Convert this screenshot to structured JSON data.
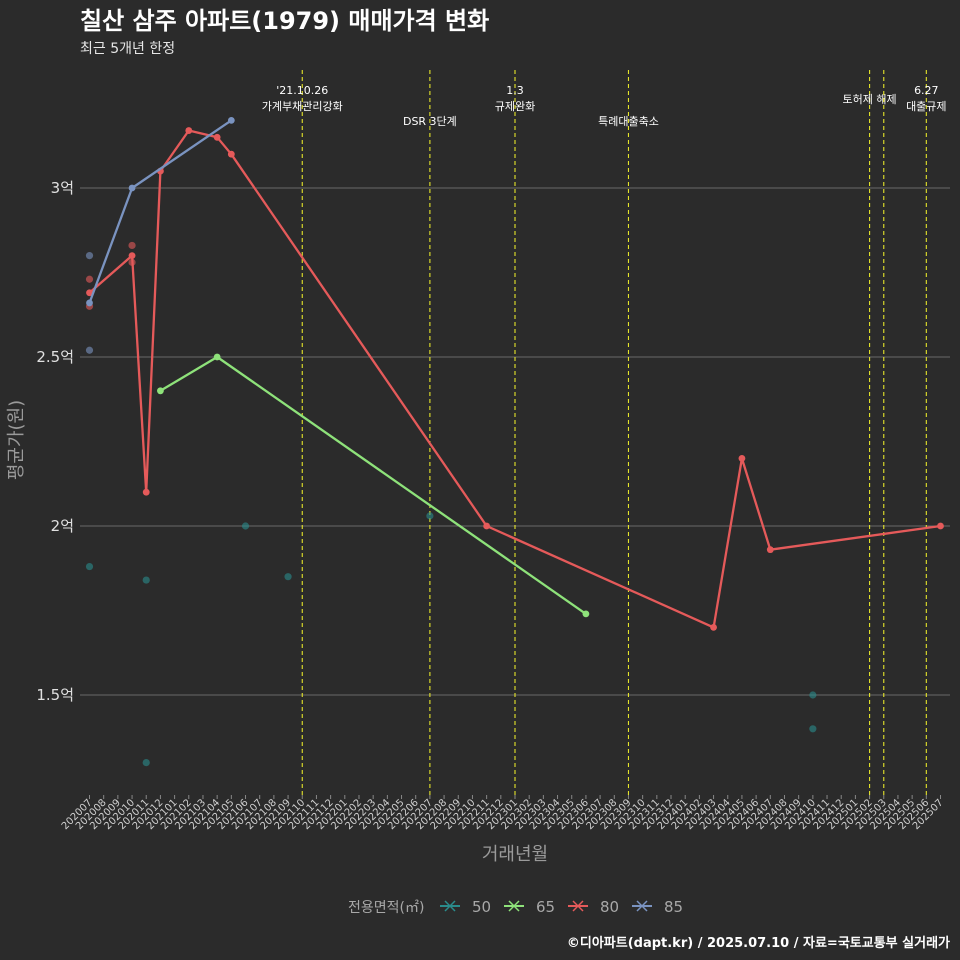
{
  "chart_data": {
    "type": "line",
    "title": "칠산 삼주 아파트(1979) 매매가격 변화",
    "subtitle": "최근 5개년 한정",
    "xlabel": "거래년월",
    "ylabel": "평균가(원)",
    "ylim": [
      1.2,
      3.4
    ],
    "y_ticks": [
      {
        "value": 1.5,
        "label": "1.5억"
      },
      {
        "value": 2.0,
        "label": "2억"
      },
      {
        "value": 2.5,
        "label": "2.5억"
      },
      {
        "value": 3.0,
        "label": "3억"
      }
    ],
    "x_categories": [
      "202007",
      "202008",
      "202009",
      "202010",
      "202011",
      "202012",
      "202101",
      "202102",
      "202103",
      "202104",
      "202105",
      "202106",
      "202107",
      "202108",
      "202109",
      "202110",
      "202111",
      "202112",
      "202201",
      "202202",
      "202203",
      "202204",
      "202205",
      "202206",
      "202207",
      "202208",
      "202209",
      "202210",
      "202211",
      "202212",
      "202301",
      "202302",
      "202303",
      "202304",
      "202305",
      "202306",
      "202307",
      "202308",
      "202309",
      "202310",
      "202311",
      "202312",
      "202401",
      "202402",
      "202403",
      "202404",
      "202405",
      "202406",
      "202407",
      "202408",
      "202409",
      "202410",
      "202411",
      "202412",
      "202501",
      "202502",
      "202503",
      "202504",
      "202505",
      "202506",
      "202507"
    ],
    "legend_title": "전용면적(㎡)",
    "series": [
      {
        "name": "50",
        "color": "#2a8c8c",
        "points": [],
        "scatter": [
          [
            "202007",
            1.88
          ],
          [
            "202011",
            1.84
          ],
          [
            "202011",
            1.3
          ],
          [
            "202106",
            2.0
          ],
          [
            "202109",
            1.85
          ],
          [
            "202207",
            2.03
          ],
          [
            "202410",
            1.5
          ],
          [
            "202410",
            1.4
          ]
        ]
      },
      {
        "name": "65",
        "color": "#8ee27a",
        "points": [
          [
            "202012",
            2.4
          ],
          [
            "202104",
            2.5
          ],
          [
            "202306",
            1.74
          ]
        ],
        "scatter": []
      },
      {
        "name": "80",
        "color": "#e55a5a",
        "points": [
          [
            "202007",
            2.69
          ],
          [
            "202010",
            2.8
          ],
          [
            "202011",
            2.1
          ],
          [
            "202012",
            3.05
          ],
          [
            "202102",
            3.17
          ],
          [
            "202104",
            3.15
          ],
          [
            "202105",
            3.1
          ],
          [
            "202211",
            2.0
          ],
          [
            "202403",
            1.7
          ],
          [
            "202405",
            2.2
          ],
          [
            "202407",
            1.93
          ],
          [
            "202507",
            2.0
          ]
        ],
        "scatter": [
          [
            "202007",
            2.73
          ],
          [
            "202007",
            2.65
          ],
          [
            "202010",
            2.83
          ],
          [
            "202010",
            2.78
          ]
        ]
      },
      {
        "name": "85",
        "color": "#7a93c0",
        "points": [
          [
            "202007",
            2.66
          ],
          [
            "202010",
            3.0
          ],
          [
            "202105",
            3.2
          ]
        ],
        "scatter": [
          [
            "202007",
            2.8
          ],
          [
            "202007",
            2.52
          ]
        ]
      }
    ],
    "events": [
      {
        "month": "202110",
        "lines": [
          "'21.10.26",
          "가계부채관리강화"
        ],
        "row": 0
      },
      {
        "month": "202207",
        "lines": [
          "DSR 3단계"
        ],
        "row": 1
      },
      {
        "month": "202301",
        "lines": [
          "1.3",
          "규제완화"
        ],
        "row": 0
      },
      {
        "month": "202309",
        "lines": [
          "특례대출축소"
        ],
        "row": 1
      },
      {
        "month": "202502",
        "lines": [
          "토허제 해제"
        ],
        "row": 0,
        "no_label": false
      },
      {
        "month": "202503",
        "lines": [],
        "row": 0
      },
      {
        "month": "202506",
        "lines": [
          "6.27",
          "대출규제"
        ],
        "row": 0
      }
    ],
    "caption": "©디아파트(dapt.kr) / 2025.07.10 / 자료=국토교통부 실거래가"
  }
}
